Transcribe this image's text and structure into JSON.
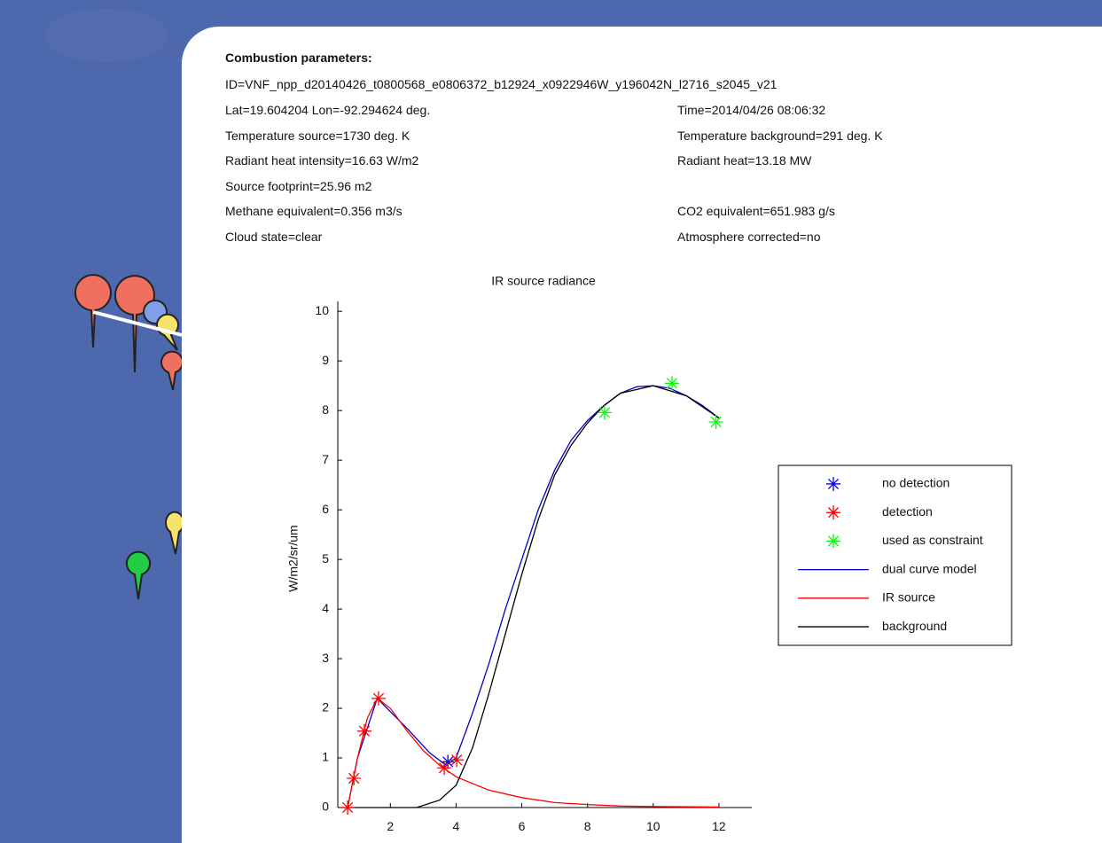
{
  "popup": {
    "title": "Combustion parameters:",
    "id": "ID=VNF_npp_d20140426_t0800568_e0806372_b12924_x0922946W_y196042N_l2716_s2045_v21",
    "left_lines": [
      "Lat=19.604204 Lon=-92.294624 deg.",
      "Temperature source=1730 deg. K",
      "Radiant heat intensity=16.63 W/m2",
      "Source footprint=25.96 m2",
      "Methane equivalent=0.356 m3/s",
      "Cloud state=clear"
    ],
    "right_lines": [
      "Time=2014/04/26 08:06:32",
      "Temperature background=291 deg. K",
      "Radiant heat=13.18 MW",
      null,
      "CO2 equivalent=651.983 g/s",
      "Atmosphere corrected=no"
    ]
  },
  "chart_data": {
    "type": "line",
    "title": "IR source radiance",
    "y_label": "W/m2/sr/um",
    "xlim": [
      0.4,
      13
    ],
    "ylim": [
      0,
      10.2
    ],
    "xticks": [
      2,
      4,
      6,
      8,
      10,
      12
    ],
    "yticks": [
      0,
      1,
      2,
      3,
      4,
      5,
      6,
      7,
      8,
      9,
      10
    ],
    "grid": false,
    "legend": "right",
    "series": [
      {
        "name": "no detection",
        "color": "#0000ff",
        "style": "marker",
        "x": [
          3.75
        ],
        "values": [
          0.92
        ]
      },
      {
        "name": "detection",
        "color": "#ff0000",
        "style": "marker",
        "x": [
          0.7,
          0.89,
          1.21,
          1.64,
          3.64,
          4.02
        ],
        "values": [
          0,
          0.59,
          1.54,
          2.2,
          0.8,
          0.96
        ]
      },
      {
        "name": "used as constraint",
        "color": "#00ff00",
        "style": "marker",
        "x": [
          8.52,
          10.57,
          11.91
        ],
        "values": [
          7.96,
          8.55,
          7.77
        ]
      },
      {
        "name": "dual curve model",
        "color": "#0000cc",
        "style": "line",
        "x": [
          0.7,
          1.0,
          1.6,
          2.5,
          3.2,
          3.7,
          4.0,
          4.5,
          5,
          5.5,
          6,
          6.5,
          7,
          7.5,
          8,
          8.5,
          9,
          9.5,
          10,
          10.5,
          11,
          11.5,
          12
        ],
        "values": [
          0,
          1.0,
          2.2,
          1.6,
          1.1,
          0.85,
          1.0,
          1.9,
          2.9,
          4.0,
          5.0,
          6.0,
          6.8,
          7.4,
          7.8,
          8.1,
          8.35,
          8.48,
          8.5,
          8.45,
          8.3,
          8.1,
          7.85
        ]
      },
      {
        "name": "IR source",
        "color": "#ff0000",
        "style": "line",
        "x": [
          0.7,
          1.0,
          1.3,
          1.6,
          2.0,
          2.5,
          3,
          3.5,
          4,
          5,
          6,
          7,
          8,
          9,
          10,
          12
        ],
        "values": [
          0,
          1.0,
          1.8,
          2.2,
          2.0,
          1.55,
          1.15,
          0.85,
          0.62,
          0.35,
          0.2,
          0.1,
          0.06,
          0.03,
          0.02,
          0.01
        ]
      },
      {
        "name": "background",
        "color": "#000000",
        "style": "line",
        "x": [
          0.5,
          2.8,
          3.5,
          4,
          4.5,
          5,
          5.5,
          6,
          6.5,
          7,
          7.5,
          8,
          8.5,
          9,
          10,
          11,
          12
        ],
        "values": [
          0,
          0,
          0.15,
          0.45,
          1.2,
          2.3,
          3.5,
          4.7,
          5.8,
          6.7,
          7.3,
          7.75,
          8.1,
          8.35,
          8.5,
          8.3,
          7.85
        ]
      }
    ]
  }
}
